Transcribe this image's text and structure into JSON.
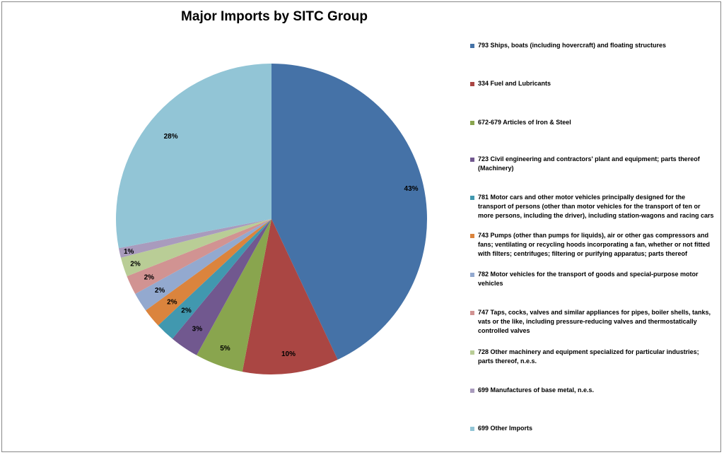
{
  "chart_data": {
    "type": "pie",
    "title": "Major Imports by SITC Group",
    "slices": [
      {
        "label": "793 Ships, boats (including hovercraft) and floating structures",
        "value": 43,
        "display": "43%",
        "color": "#4572A7"
      },
      {
        "label": "334  Fuel and Lubricants",
        "value": 10,
        "display": "10%",
        "color": "#AA4643"
      },
      {
        "label": "672-679  Articles of Iron & Steel",
        "value": 5,
        "display": "5%",
        "color": "#89A54E"
      },
      {
        "label": "723  Civil engineering and contractors' plant and equipment; parts thereof (Machinery)",
        "value": 3,
        "display": "3%",
        "color": "#71588F"
      },
      {
        "label": "781  Motor cars and other motor vehicles principally designed for the transport of persons (other than motor vehicles for the transport of ten or more persons, including the driver), including station-wagons and racing cars",
        "value": 2,
        "display": "2%",
        "color": "#4198AF"
      },
      {
        "label": "743  Pumps (other than pumps for liquids), air or other gas compressors and fans; ventilating or recycling hoods incorporating a fan, whether or not fitted with filters; centrifuges; filtering or purifying apparatus; parts thereof",
        "value": 2,
        "display": "2%",
        "color": "#DB843D"
      },
      {
        "label": "782  Motor vehicles for the transport of goods and special-purpose motor vehicles",
        "value": 2,
        "display": "2%",
        "color": "#93A9CF"
      },
      {
        "label": "747  Taps, cocks, valves and similar appliances for pipes, boiler shells, tanks, vats or the like, including pressure-reducing valves and thermostatically controlled valves",
        "value": 2,
        "display": "2%",
        "color": "#D19392"
      },
      {
        "label": "728 Other machinery and equipment specialized for particular industries; parts thereof, n.e.s.",
        "value": 2,
        "display": "2%",
        "color": "#B9CD96"
      },
      {
        "label": "699  Manufactures of base metal, n.e.s.",
        "value": 1,
        "display": "1%",
        "color": "#A99BBD"
      },
      {
        "label": "699  Other Imports",
        "value": 28,
        "display": "28%",
        "color": "#92C5D6"
      }
    ],
    "legend_position": "right"
  }
}
